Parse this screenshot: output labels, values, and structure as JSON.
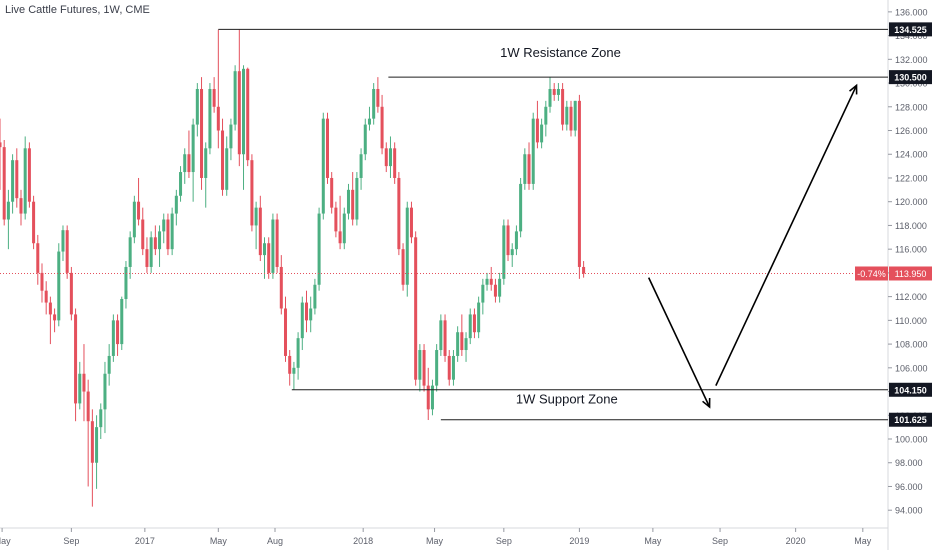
{
  "header": {
    "title": "Live Cattle Futures, 1W, CME"
  },
  "colors": {
    "up": "#4caf82",
    "down": "#e4505c",
    "level_line": "#1f1f1f",
    "current_line": "#e4505c",
    "background": "#ffffff"
  },
  "chart_data": {
    "type": "candlestick",
    "ylim": [
      92.5,
      137.0
    ],
    "y_ticks": [
      "94.000",
      "96.000",
      "98.000",
      "100.000",
      "102.000",
      "104.000",
      "106.000",
      "108.000",
      "110.000",
      "112.000",
      "114.000",
      "116.000",
      "118.000",
      "120.000",
      "122.000",
      "124.000",
      "126.000",
      "128.000",
      "130.000",
      "132.000",
      "134.000",
      "136.000"
    ],
    "x_ticks": [
      {
        "label": "May",
        "x": 0.0
      },
      {
        "label": "Sep",
        "x": 16.5
      },
      {
        "label": "2017",
        "x": 34.0
      },
      {
        "label": "May",
        "x": 51.5
      },
      {
        "label": "Aug",
        "x": 65.0
      },
      {
        "label": "2018",
        "x": 86.0
      },
      {
        "label": "May",
        "x": 103.0
      },
      {
        "label": "Sep",
        "x": 119.5
      },
      {
        "label": "2019",
        "x": 137.5
      },
      {
        "label": "May",
        "x": 155.0
      },
      {
        "label": "Sep",
        "x": 171.0
      },
      {
        "label": "2020",
        "x": 189.0
      },
      {
        "label": "May",
        "x": 205.0
      }
    ],
    "price_levels": [
      {
        "value": 134.525,
        "label": "134.525",
        "x_start": 51.5
      },
      {
        "value": 130.5,
        "label": "130.500",
        "x_start": 92.0
      },
      {
        "value": 104.15,
        "label": "104.150",
        "x_start": 69.0
      },
      {
        "value": 101.625,
        "label": "101.625",
        "x_start": 104.5
      }
    ],
    "current": {
      "value": 113.95,
      "label": "113.950",
      "change": "-0.74%"
    },
    "annotations": [
      {
        "text": "1W Resistance Zone",
        "x": 133.0,
        "y": 132.2
      },
      {
        "text": "1W Support Zone",
        "x": 134.5,
        "y": 103.0
      }
    ],
    "arrows": [
      {
        "from": [
          154.0,
          113.6
        ],
        "to": [
          168.5,
          102.7
        ]
      },
      {
        "from": [
          170.0,
          104.5
        ],
        "to": [
          203.5,
          129.8
        ]
      }
    ],
    "candles": [
      [
        -0.5,
        125.0,
        127.0,
        121.0,
        124.6
      ],
      [
        0.5,
        124.6,
        125.2,
        118.0,
        118.5
      ],
      [
        1.5,
        118.5,
        121.0,
        116.0,
        120.0
      ],
      [
        2.5,
        120.0,
        124.0,
        119.0,
        123.5
      ],
      [
        3.5,
        123.5,
        124.5,
        119.5,
        120.3
      ],
      [
        4.5,
        120.3,
        121.0,
        118.0,
        119.0
      ],
      [
        5.5,
        119.0,
        125.5,
        118.5,
        124.5
      ],
      [
        6.5,
        124.5,
        125.0,
        119.5,
        120.0
      ],
      [
        7.5,
        120.0,
        120.5,
        116.0,
        116.5
      ],
      [
        8.5,
        116.5,
        117.2,
        113.0,
        114.0
      ],
      [
        9.5,
        114.0,
        114.8,
        111.5,
        112.5
      ],
      [
        10.5,
        112.5,
        113.3,
        110.5,
        111.5
      ],
      [
        11.5,
        111.5,
        112.0,
        108.0,
        110.5
      ],
      [
        12.5,
        110.5,
        111.0,
        109.0,
        110.0
      ],
      [
        13.5,
        110.0,
        116.5,
        109.5,
        115.8
      ],
      [
        14.5,
        115.8,
        118.0,
        115.0,
        117.6
      ],
      [
        15.5,
        117.6,
        118.0,
        113.5,
        114.0
      ],
      [
        16.5,
        114.0,
        114.5,
        110.0,
        110.5
      ],
      [
        17.5,
        110.5,
        111.0,
        101.5,
        103.0
      ],
      [
        18.5,
        103.0,
        106.5,
        102.5,
        105.5
      ],
      [
        19.5,
        105.5,
        108.0,
        101.5,
        104.0
      ],
      [
        20.5,
        104.0,
        105.0,
        96.0,
        101.5
      ],
      [
        21.5,
        101.5,
        102.5,
        94.3,
        98.0
      ],
      [
        22.5,
        98.0,
        102.0,
        95.8,
        101.0
      ],
      [
        23.5,
        101.0,
        103.0,
        100.0,
        102.5
      ],
      [
        24.5,
        102.5,
        106.5,
        100.5,
        105.5
      ],
      [
        25.5,
        105.5,
        108.0,
        104.5,
        107.0
      ],
      [
        26.5,
        107.0,
        110.5,
        106.5,
        110.0
      ],
      [
        27.5,
        110.0,
        110.5,
        107.0,
        108.0
      ],
      [
        28.5,
        108.0,
        112.0,
        107.5,
        111.8
      ],
      [
        29.5,
        111.8,
        115.0,
        111.0,
        114.5
      ],
      [
        30.5,
        114.5,
        117.5,
        113.5,
        117.0
      ],
      [
        31.5,
        117.0,
        120.5,
        116.5,
        120.0
      ],
      [
        32.5,
        120.0,
        122.0,
        118.0,
        118.5
      ],
      [
        33.5,
        118.5,
        119.5,
        115.5,
        116.0
      ],
      [
        34.5,
        116.0,
        117.0,
        114.0,
        114.5
      ],
      [
        35.5,
        114.5,
        117.5,
        114.0,
        117.0
      ],
      [
        36.5,
        117.0,
        118.0,
        115.5,
        116.0
      ],
      [
        37.5,
        116.0,
        118.0,
        114.5,
        117.5
      ],
      [
        38.5,
        117.5,
        119.0,
        116.5,
        118.5
      ],
      [
        39.5,
        118.5,
        119.0,
        115.5,
        116.0
      ],
      [
        40.5,
        116.0,
        119.5,
        115.5,
        119.0
      ],
      [
        41.5,
        119.0,
        121.0,
        118.0,
        120.5
      ],
      [
        42.5,
        120.5,
        123.0,
        120.0,
        122.5
      ],
      [
        43.5,
        122.5,
        124.5,
        121.5,
        124.0
      ],
      [
        44.5,
        124.0,
        126.0,
        122.0,
        122.5
      ],
      [
        45.5,
        122.5,
        127.0,
        120.0,
        126.5
      ],
      [
        46.5,
        126.5,
        130.0,
        125.5,
        129.5
      ],
      [
        47.5,
        129.5,
        130.5,
        121.0,
        122.0
      ],
      [
        48.5,
        122.0,
        125.0,
        119.5,
        124.5
      ],
      [
        49.5,
        124.5,
        130.0,
        124.0,
        129.5
      ],
      [
        50.5,
        129.5,
        130.5,
        127.5,
        128.0
      ],
      [
        51.5,
        128.0,
        134.5,
        124.5,
        126.0
      ],
      [
        52.5,
        126.0,
        127.0,
        120.5,
        121.0
      ],
      [
        53.5,
        121.0,
        125.5,
        120.5,
        124.5
      ],
      [
        54.5,
        124.5,
        127.0,
        123.5,
        126.5
      ],
      [
        55.5,
        126.5,
        131.5,
        126.0,
        131.0
      ],
      [
        56.5,
        131.0,
        134.5,
        123.0,
        124.0
      ],
      [
        57.5,
        124.0,
        131.5,
        121.0,
        131.2
      ],
      [
        58.5,
        131.2,
        131.3,
        123.0,
        123.5
      ],
      [
        59.5,
        123.5,
        124.0,
        117.5,
        118.0
      ],
      [
        60.5,
        118.0,
        120.0,
        116.0,
        119.5
      ],
      [
        61.5,
        119.5,
        120.5,
        115.0,
        115.5
      ],
      [
        62.5,
        115.5,
        117.0,
        113.5,
        116.5
      ],
      [
        63.5,
        116.5,
        117.0,
        113.5,
        114.0
      ],
      [
        64.5,
        114.0,
        119.0,
        113.5,
        118.5
      ],
      [
        65.5,
        118.5,
        119.0,
        114.0,
        114.5
      ],
      [
        66.5,
        114.5,
        115.5,
        110.5,
        111.0
      ],
      [
        67.5,
        111.0,
        112.0,
        106.5,
        107.0
      ],
      [
        68.5,
        107.0,
        107.5,
        104.5,
        105.5
      ],
      [
        69.5,
        105.5,
        106.5,
        104.15,
        106.0
      ],
      [
        70.5,
        106.0,
        109.0,
        105.0,
        108.5
      ],
      [
        71.5,
        108.5,
        112.0,
        107.5,
        111.5
      ],
      [
        72.5,
        111.5,
        112.5,
        109.0,
        110.0
      ],
      [
        73.5,
        110.0,
        112.0,
        109.0,
        111.0
      ],
      [
        74.5,
        111.0,
        113.5,
        110.5,
        113.0
      ],
      [
        75.5,
        113.0,
        119.5,
        112.5,
        119.0
      ],
      [
        76.5,
        119.0,
        127.5,
        118.5,
        127.0
      ],
      [
        77.5,
        127.0,
        127.5,
        121.5,
        122.0
      ],
      [
        78.5,
        122.0,
        122.5,
        119.0,
        119.5
      ],
      [
        79.5,
        119.5,
        120.0,
        117.0,
        117.5
      ],
      [
        80.5,
        117.5,
        120.5,
        116.0,
        116.5
      ],
      [
        81.5,
        116.5,
        119.5,
        116.0,
        119.0
      ],
      [
        82.5,
        119.0,
        121.5,
        118.5,
        121.0
      ],
      [
        83.5,
        121.0,
        122.5,
        118.0,
        118.5
      ],
      [
        84.5,
        118.5,
        122.5,
        118.0,
        122.0
      ],
      [
        85.5,
        122.0,
        124.5,
        121.0,
        124.0
      ],
      [
        86.5,
        124.0,
        127.0,
        123.5,
        126.5
      ],
      [
        87.5,
        126.5,
        128.0,
        126.0,
        127.0
      ],
      [
        88.5,
        127.0,
        130.0,
        126.5,
        129.5
      ],
      [
        89.5,
        129.5,
        130.5,
        127.5,
        128.0
      ],
      [
        90.5,
        128.0,
        129.0,
        124.0,
        124.5
      ],
      [
        91.5,
        124.5,
        125.0,
        122.5,
        123.0
      ],
      [
        92.5,
        123.0,
        125.5,
        122.0,
        124.5
      ],
      [
        93.5,
        124.5,
        125.0,
        121.5,
        122.0
      ],
      [
        94.5,
        122.0,
        122.5,
        115.5,
        116.0
      ],
      [
        95.5,
        116.0,
        116.5,
        112.5,
        113.0
      ],
      [
        96.5,
        113.0,
        120.0,
        112.0,
        119.5
      ],
      [
        97.5,
        119.5,
        120.0,
        116.5,
        117.0
      ],
      [
        98.5,
        117.0,
        117.5,
        104.5,
        105.0
      ],
      [
        99.5,
        105.0,
        108.0,
        104.0,
        107.5
      ],
      [
        100.5,
        107.5,
        108.0,
        104.0,
        104.5
      ],
      [
        101.5,
        104.5,
        106.0,
        101.6,
        102.5
      ],
      [
        102.5,
        102.5,
        105.0,
        102.0,
        104.5
      ],
      [
        103.5,
        104.5,
        108.0,
        104.0,
        107.5
      ],
      [
        104.5,
        107.5,
        110.5,
        107.0,
        110.0
      ],
      [
        105.5,
        110.0,
        110.5,
        106.5,
        107.0
      ],
      [
        106.5,
        107.0,
        107.5,
        104.5,
        105.0
      ],
      [
        107.5,
        105.0,
        107.5,
        104.5,
        107.0
      ],
      [
        108.5,
        107.0,
        109.5,
        106.5,
        109.0
      ],
      [
        109.5,
        109.0,
        110.5,
        107.0,
        107.5
      ],
      [
        110.5,
        107.5,
        109.0,
        106.5,
        108.5
      ],
      [
        111.5,
        108.5,
        111.0,
        108.0,
        110.5
      ],
      [
        112.5,
        110.5,
        111.0,
        108.5,
        109.0
      ],
      [
        113.5,
        109.0,
        112.0,
        108.5,
        111.5
      ],
      [
        114.5,
        111.5,
        113.5,
        110.5,
        113.0
      ],
      [
        115.5,
        113.0,
        114.0,
        112.5,
        113.5
      ],
      [
        116.5,
        113.5,
        114.5,
        112.5,
        113.0
      ],
      [
        117.5,
        113.0,
        113.5,
        111.5,
        112.0
      ],
      [
        118.5,
        112.0,
        114.0,
        111.5,
        113.5
      ],
      [
        119.5,
        113.5,
        118.5,
        113.0,
        118.0
      ],
      [
        120.5,
        118.0,
        118.5,
        115.0,
        115.5
      ],
      [
        121.5,
        115.5,
        116.5,
        114.5,
        116.0
      ],
      [
        122.5,
        116.0,
        118.0,
        115.5,
        117.5
      ],
      [
        123.5,
        117.5,
        122.0,
        117.0,
        121.5
      ],
      [
        124.5,
        121.5,
        124.5,
        121.0,
        124.0
      ],
      [
        125.5,
        124.0,
        125.0,
        121.0,
        121.5
      ],
      [
        126.5,
        121.5,
        127.5,
        121.0,
        127.0
      ],
      [
        127.5,
        127.0,
        128.5,
        124.5,
        125.0
      ],
      [
        128.5,
        125.0,
        127.0,
        124.5,
        126.5
      ],
      [
        129.5,
        126.5,
        128.5,
        125.5,
        128.0
      ],
      [
        130.5,
        128.0,
        130.5,
        127.5,
        129.5
      ],
      [
        131.5,
        129.5,
        130.0,
        128.5,
        129.0
      ],
      [
        132.5,
        129.0,
        130.0,
        128.5,
        129.5
      ],
      [
        133.5,
        129.5,
        130.0,
        126.0,
        126.5
      ],
      [
        134.5,
        126.5,
        128.5,
        126.0,
        128.0
      ],
      [
        135.5,
        128.0,
        128.5,
        125.5,
        126.0
      ],
      [
        136.5,
        126.0,
        128.5,
        125.5,
        128.5
      ],
      [
        137.5,
        128.5,
        129.0,
        113.5,
        114.5
      ],
      [
        138.5,
        114.5,
        115.0,
        113.6,
        113.95
      ]
    ]
  }
}
